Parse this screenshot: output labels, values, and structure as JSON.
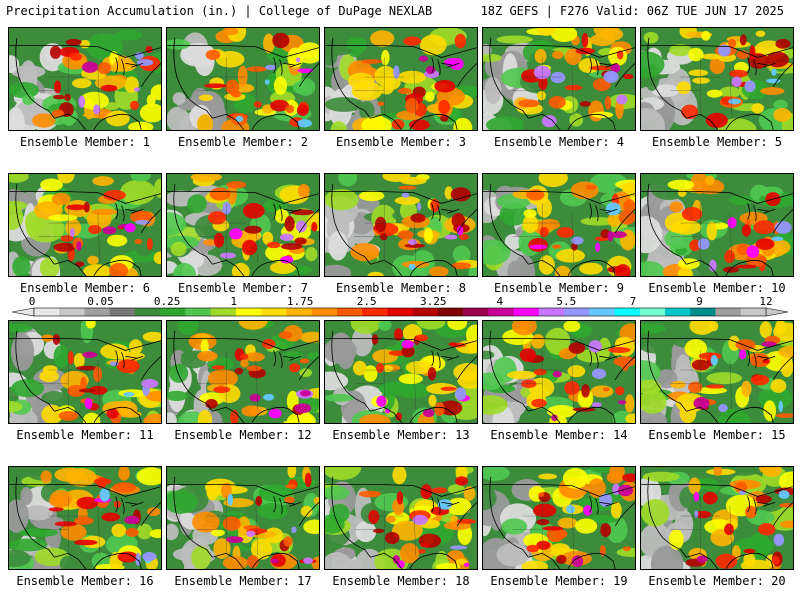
{
  "header": {
    "title": "Precipitation Accumulation (in.) | College of DuPage NEXLAB",
    "run_info": "18Z GEFS | F276 Valid: 06Z TUE JUN 17 2025"
  },
  "panels": [
    {
      "label": "Ensemble Member: 1",
      "member": 1
    },
    {
      "label": "Ensemble Member: 2",
      "member": 2
    },
    {
      "label": "Ensemble Member: 3",
      "member": 3
    },
    {
      "label": "Ensemble Member: 4",
      "member": 4
    },
    {
      "label": "Ensemble Member: 5",
      "member": 5
    },
    {
      "label": "Ensemble Member: 6",
      "member": 6
    },
    {
      "label": "Ensemble Member: 7",
      "member": 7
    },
    {
      "label": "Ensemble Member: 8",
      "member": 8
    },
    {
      "label": "Ensemble Member: 9",
      "member": 9
    },
    {
      "label": "Ensemble Member: 10",
      "member": 10
    },
    {
      "label": "Ensemble Member: 11",
      "member": 11
    },
    {
      "label": "Ensemble Member: 12",
      "member": 12
    },
    {
      "label": "Ensemble Member: 13",
      "member": 13
    },
    {
      "label": "Ensemble Member: 14",
      "member": 14
    },
    {
      "label": "Ensemble Member: 15",
      "member": 15
    },
    {
      "label": "Ensemble Member: 16",
      "member": 16
    },
    {
      "label": "Ensemble Member: 17",
      "member": 17
    },
    {
      "label": "Ensemble Member: 18",
      "member": 18
    },
    {
      "label": "Ensemble Member: 19",
      "member": 19
    },
    {
      "label": "Ensemble Member: 20",
      "member": 20
    }
  ],
  "colorbar": {
    "tick_labels": [
      "0",
      "0.05",
      "0.25",
      "1",
      "1.75",
      "2.5",
      "3.25",
      "4",
      "5.5",
      "7",
      "9",
      "12"
    ],
    "colors": [
      "#e8e8e8",
      "#c8c8c8",
      "#a0a0a0",
      "#787878",
      "#3c8c3c",
      "#2fa82f",
      "#50c850",
      "#a0dc28",
      "#ffff00",
      "#ffdc00",
      "#ffb400",
      "#ff8c00",
      "#ff5a00",
      "#ff2800",
      "#e60000",
      "#b40000",
      "#820000",
      "#a00050",
      "#c80096",
      "#ff00ff",
      "#c878ff",
      "#9696ff",
      "#64c8ff",
      "#00ffff",
      "#78ffd2",
      "#00c8c8",
      "#008c8c",
      "#a0a0a0",
      "#c8c8c8"
    ]
  }
}
